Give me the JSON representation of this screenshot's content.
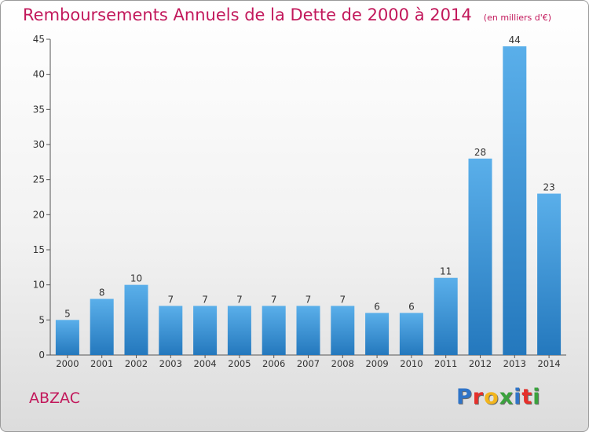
{
  "header": {
    "title": "Remboursements Annuels de la Dette de 2000 à 2014",
    "unit": "(en milliers d'€)"
  },
  "commune": "ABZAC",
  "brand": {
    "letters": [
      {
        "char": "P",
        "color": "#2f74c8"
      },
      {
        "char": "r",
        "color": "#e5302b"
      },
      {
        "char": "o",
        "color": "#f2b51c"
      },
      {
        "char": "x",
        "color": "#3aa23d"
      },
      {
        "char": "i",
        "color": "#2f74c8"
      },
      {
        "char": "t",
        "color": "#e5302b"
      },
      {
        "char": "i",
        "color": "#3aa23d"
      }
    ]
  },
  "colors": {
    "title": "#c2185b",
    "bar_top": "#5aafea",
    "bar_bottom": "#2478bd",
    "axis": "#555555",
    "text": "#333333"
  },
  "chart_data": {
    "type": "bar",
    "title": "Remboursements Annuels de la Dette de 2000 à 2014",
    "subtitle": "(en milliers d'€)",
    "categories": [
      "2000",
      "2001",
      "2002",
      "2003",
      "2004",
      "2005",
      "2006",
      "2007",
      "2008",
      "2009",
      "2010",
      "2011",
      "2012",
      "2013",
      "2014"
    ],
    "values": [
      5,
      8,
      10,
      7,
      7,
      7,
      7,
      7,
      7,
      6,
      6,
      11,
      28,
      44,
      23
    ],
    "ylim": [
      0,
      45
    ],
    "yticks": [
      0,
      5,
      10,
      15,
      20,
      25,
      30,
      35,
      40,
      45
    ],
    "xlabel": "",
    "ylabel": "",
    "grid": false,
    "data_labels": true
  }
}
